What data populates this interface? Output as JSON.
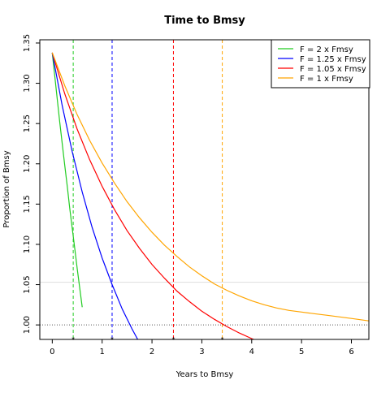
{
  "chart_data": {
    "type": "line",
    "title": "Time to Bmsy",
    "xlabel": "Years to Bmsy",
    "ylabel": "Proportion of Bmsy",
    "xlim": [
      -0.25,
      6.35
    ],
    "ylim": [
      0.982,
      1.354
    ],
    "x_ticks": [
      0,
      1,
      2,
      3,
      4,
      5,
      6
    ],
    "y_ticks": [
      1.0,
      1.05,
      1.1,
      1.15,
      1.2,
      1.25,
      1.3,
      1.35
    ],
    "x_tick_labels": [
      "0",
      "1",
      "2",
      "3",
      "4",
      "5",
      "6"
    ],
    "y_tick_labels": [
      "1.00",
      "1.05",
      "1.10",
      "1.15",
      "1.20",
      "1.25",
      "1.30",
      "1.35"
    ],
    "reference_lines": [
      {
        "axis": "y",
        "value": 1.0,
        "style": "dotted",
        "color": "#555555"
      },
      {
        "axis": "y",
        "value": 1.053,
        "style": "solid",
        "color": "#dddddd"
      }
    ],
    "legend": {
      "position": "top-right"
    },
    "series": [
      {
        "name": "F = 2 x Fmsy",
        "color": "#22cc22",
        "x": [
          0,
          0.05,
          0.1,
          0.15,
          0.2,
          0.25,
          0.3,
          0.35,
          0.4,
          0.45,
          0.5,
          0.55,
          0.6
        ],
        "y": [
          1.338,
          1.309,
          1.28,
          1.252,
          1.225,
          1.198,
          1.172,
          1.145,
          1.12,
          1.095,
          1.07,
          1.046,
          1.022
        ],
        "vline": 0.42
      },
      {
        "name": "F = 1.25 x Fmsy",
        "color": "#0000ff",
        "x": [
          0,
          0.2,
          0.4,
          0.6,
          0.8,
          1.0,
          1.2,
          1.4,
          1.6,
          1.8
        ],
        "y": [
          1.338,
          1.272,
          1.215,
          1.165,
          1.121,
          1.083,
          1.05,
          1.02,
          0.995,
          0.972
        ],
        "vline": 1.2
      },
      {
        "name": "F = 1.05 x Fmsy",
        "color": "#ff0000",
        "x": [
          0,
          0.25,
          0.5,
          0.75,
          1.0,
          1.25,
          1.5,
          1.75,
          2.0,
          2.25,
          2.5,
          2.75,
          3.0,
          3.25,
          3.5,
          3.75,
          4.0,
          4.25,
          4.5,
          4.75
        ],
        "y": [
          1.338,
          1.287,
          1.243,
          1.205,
          1.172,
          1.143,
          1.117,
          1.095,
          1.075,
          1.058,
          1.042,
          1.029,
          1.017,
          1.007,
          0.998,
          0.99,
          0.983,
          0.977,
          0.972,
          0.968
        ],
        "vline": 2.43
      },
      {
        "name": "F = 1 x Fmsy",
        "color": "#ffa500",
        "x": [
          0,
          0.25,
          0.5,
          0.75,
          1.0,
          1.25,
          1.5,
          1.75,
          2.0,
          2.25,
          2.5,
          2.75,
          3.0,
          3.25,
          3.5,
          3.75,
          4.0,
          4.25,
          4.5,
          4.75,
          5.0,
          5.25,
          5.5,
          5.75,
          6.0,
          6.35
        ],
        "y": [
          1.338,
          1.297,
          1.261,
          1.229,
          1.201,
          1.176,
          1.153,
          1.133,
          1.115,
          1.099,
          1.085,
          1.072,
          1.061,
          1.051,
          1.043,
          1.036,
          1.03,
          1.025,
          1.021,
          1.018,
          1.016,
          1.014,
          1.012,
          1.01,
          1.008,
          1.005
        ],
        "vline": 3.41
      }
    ]
  }
}
